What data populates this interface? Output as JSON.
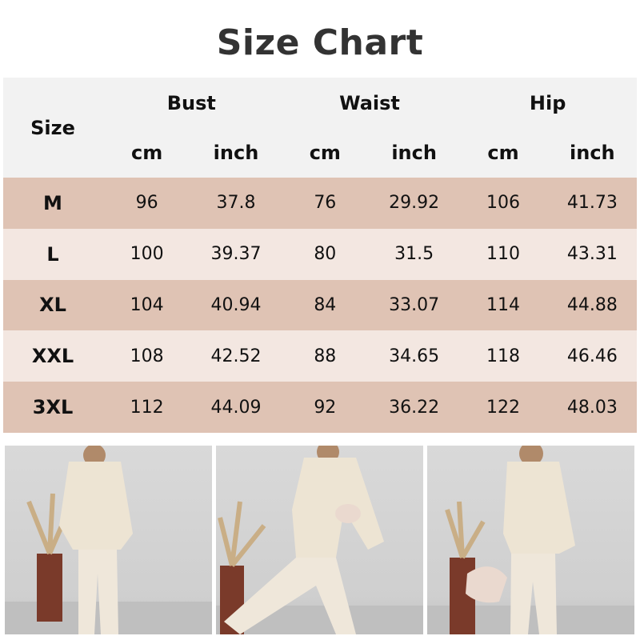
{
  "title": "Size Chart",
  "table": {
    "size_header": "Size",
    "groups": [
      "Bust",
      "Waist",
      "Hip"
    ],
    "units": [
      "cm",
      "inch",
      "cm",
      "inch",
      "cm",
      "inch"
    ],
    "rows": [
      {
        "size": "M",
        "values": [
          "96",
          "37.8",
          "76",
          "29.92",
          "106",
          "41.73"
        ]
      },
      {
        "size": "L",
        "values": [
          "100",
          "39.37",
          "80",
          "31.5",
          "110",
          "43.31"
        ]
      },
      {
        "size": "XL",
        "values": [
          "104",
          "40.94",
          "84",
          "33.07",
          "114",
          "44.88"
        ]
      },
      {
        "size": "XXL",
        "values": [
          "108",
          "42.52",
          "88",
          "34.65",
          "118",
          "46.46"
        ]
      },
      {
        "size": "3XL",
        "values": [
          "112",
          "44.09",
          "92",
          "36.22",
          "122",
          "48.03"
        ]
      }
    ]
  },
  "colors": {
    "header_bg": "#f2f2f2",
    "row_dark": "#dfc3b4",
    "row_light": "#f3e7e1",
    "outfit": "#ede4d3"
  }
}
